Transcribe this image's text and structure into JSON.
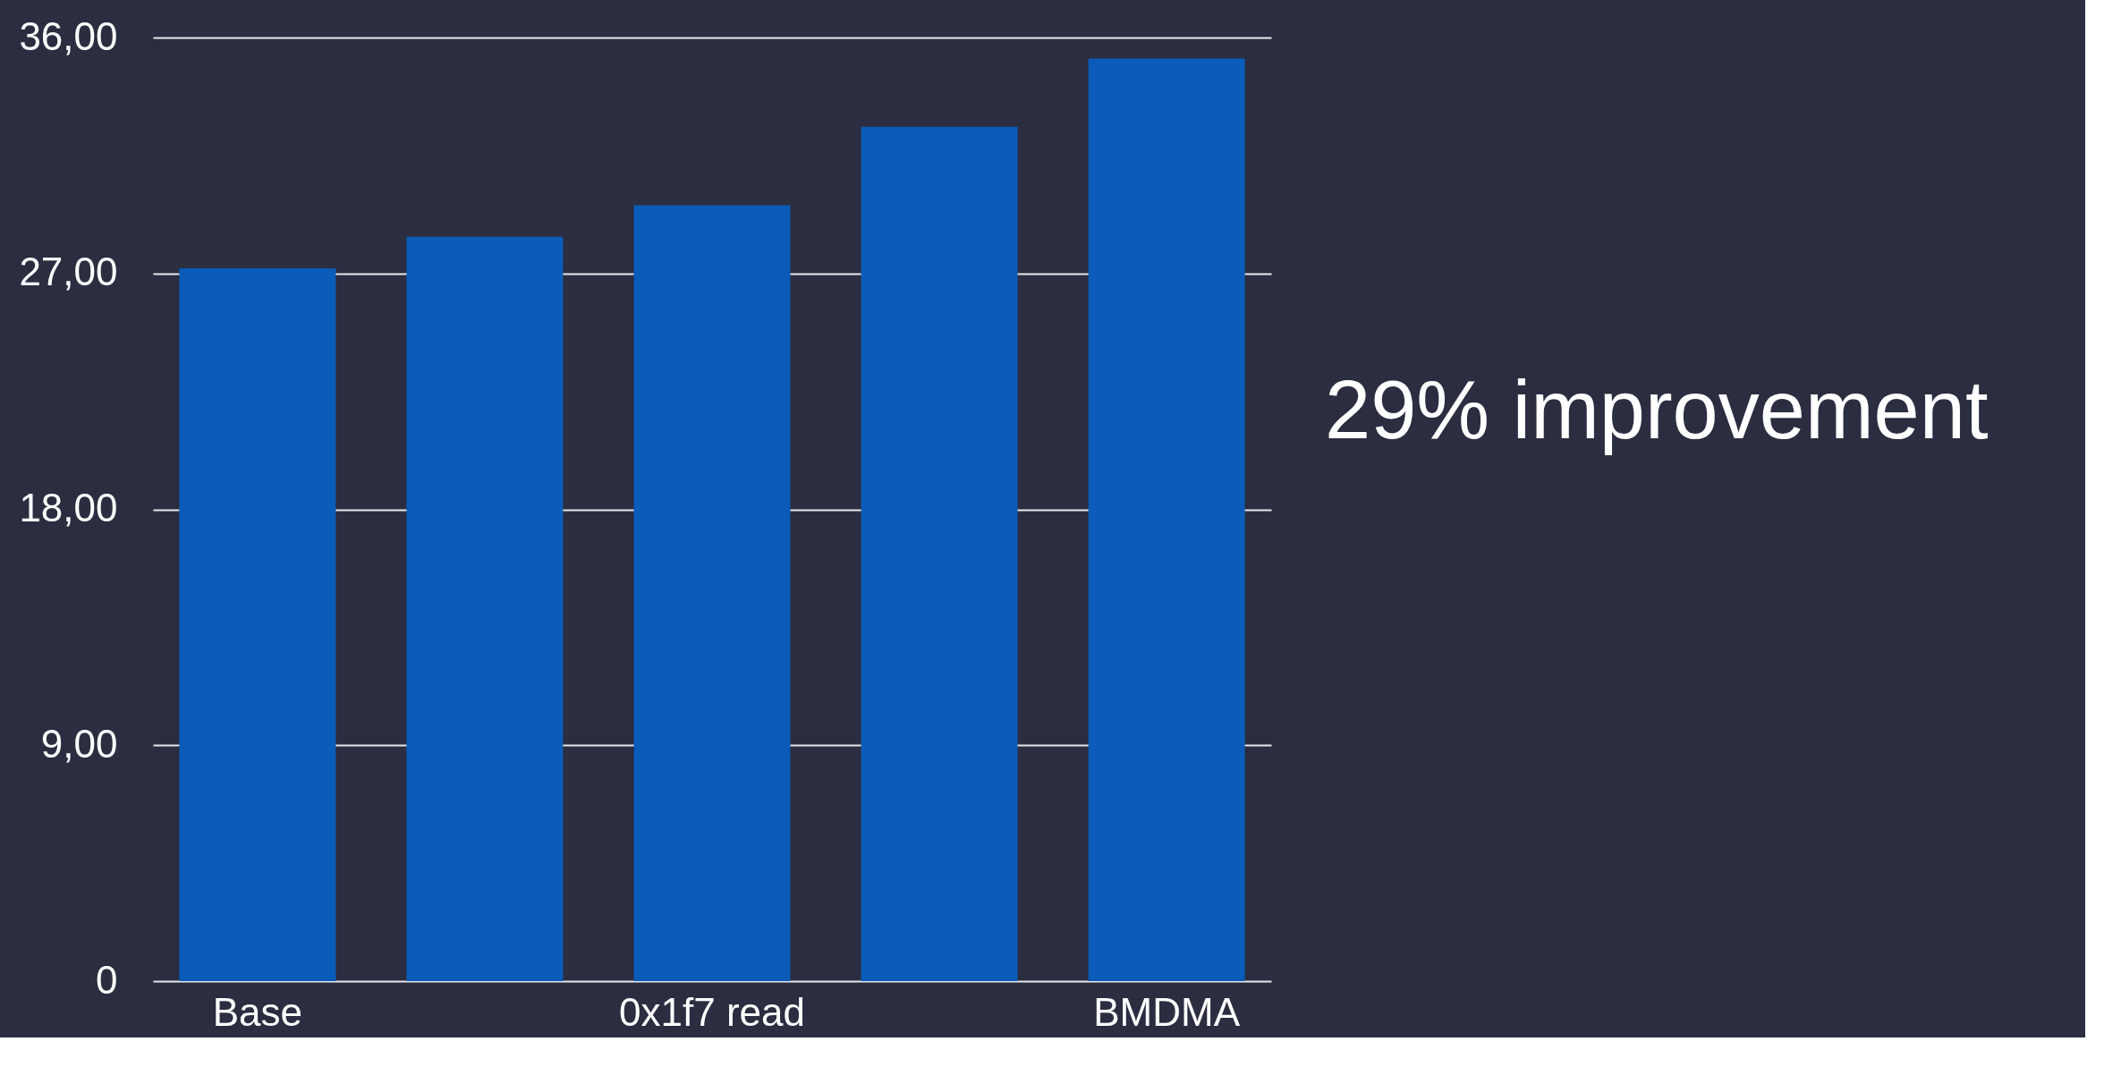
{
  "chart_data": {
    "type": "bar",
    "categories": [
      "Base",
      null,
      "0x1f7 read",
      null,
      "BMDMA"
    ],
    "values": [
      27.2,
      28.4,
      29.6,
      32.6,
      35.2
    ],
    "color": "#0a5cb8",
    "ylim": [
      0,
      36
    ],
    "yticks": [
      {
        "value": 0,
        "label": "0"
      },
      {
        "value": 9,
        "label": "9,00"
      },
      {
        "value": 18,
        "label": "18,00"
      },
      {
        "value": 27,
        "label": "27,00"
      },
      {
        "value": 36,
        "label": "36,00"
      }
    ],
    "grid": "y",
    "annotations": [
      "29% improvement"
    ]
  }
}
